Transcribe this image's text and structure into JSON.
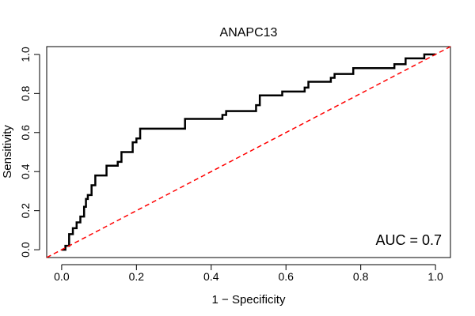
{
  "chart_data": {
    "type": "line",
    "title": "ANAPC13",
    "xlabel": "1 − Specificity",
    "ylabel": "Sensitivity",
    "xlim": [
      -0.04,
      1.04
    ],
    "ylim": [
      -0.04,
      1.04
    ],
    "x_ticks": [
      0.0,
      0.2,
      0.4,
      0.6,
      0.8,
      1.0
    ],
    "x_tick_labels": [
      "0.0",
      "0.2",
      "0.4",
      "0.6",
      "0.8",
      "1.0"
    ],
    "y_ticks": [
      0.0,
      0.2,
      0.4,
      0.6,
      0.8,
      1.0
    ],
    "y_tick_labels": [
      "0.0",
      "0.2",
      "0.4",
      "0.6",
      "0.8",
      "1.0"
    ],
    "annotation": "AUC = 0.7",
    "grid": false,
    "series": [
      {
        "style": "step",
        "color": "#000000",
        "x": [
          0.0,
          0.01,
          0.01,
          0.02,
          0.02,
          0.03,
          0.03,
          0.04,
          0.04,
          0.05,
          0.05,
          0.06,
          0.06,
          0.065,
          0.065,
          0.07,
          0.07,
          0.08,
          0.08,
          0.09,
          0.09,
          0.1,
          0.1,
          0.12,
          0.12,
          0.15,
          0.15,
          0.16,
          0.16,
          0.17,
          0.17,
          0.19,
          0.19,
          0.2,
          0.2,
          0.21,
          0.21,
          0.33,
          0.33,
          0.34,
          0.34,
          0.43,
          0.43,
          0.44,
          0.44,
          0.52,
          0.52,
          0.53,
          0.53,
          0.59,
          0.59,
          0.65,
          0.65,
          0.66,
          0.66,
          0.72,
          0.72,
          0.73,
          0.73,
          0.77,
          0.77,
          0.78,
          0.78,
          0.89,
          0.89,
          0.92,
          0.92,
          0.97,
          0.97,
          1.0
        ],
        "y": [
          0.0,
          0.0,
          0.02,
          0.02,
          0.08,
          0.08,
          0.11,
          0.11,
          0.14,
          0.14,
          0.17,
          0.17,
          0.22,
          0.22,
          0.26,
          0.26,
          0.28,
          0.28,
          0.33,
          0.33,
          0.38,
          0.38,
          0.38,
          0.38,
          0.43,
          0.43,
          0.45,
          0.45,
          0.5,
          0.5,
          0.5,
          0.5,
          0.55,
          0.55,
          0.57,
          0.57,
          0.62,
          0.62,
          0.67,
          0.67,
          0.67,
          0.67,
          0.69,
          0.69,
          0.71,
          0.71,
          0.74,
          0.74,
          0.79,
          0.79,
          0.81,
          0.81,
          0.83,
          0.83,
          0.86,
          0.86,
          0.88,
          0.88,
          0.9,
          0.9,
          0.9,
          0.9,
          0.93,
          0.93,
          0.95,
          0.95,
          0.98,
          0.98,
          1.0,
          1.0
        ]
      },
      {
        "style": "dashed",
        "color": "#ff0000",
        "x": [
          -0.04,
          1.04
        ],
        "y": [
          -0.04,
          1.04
        ]
      }
    ]
  }
}
